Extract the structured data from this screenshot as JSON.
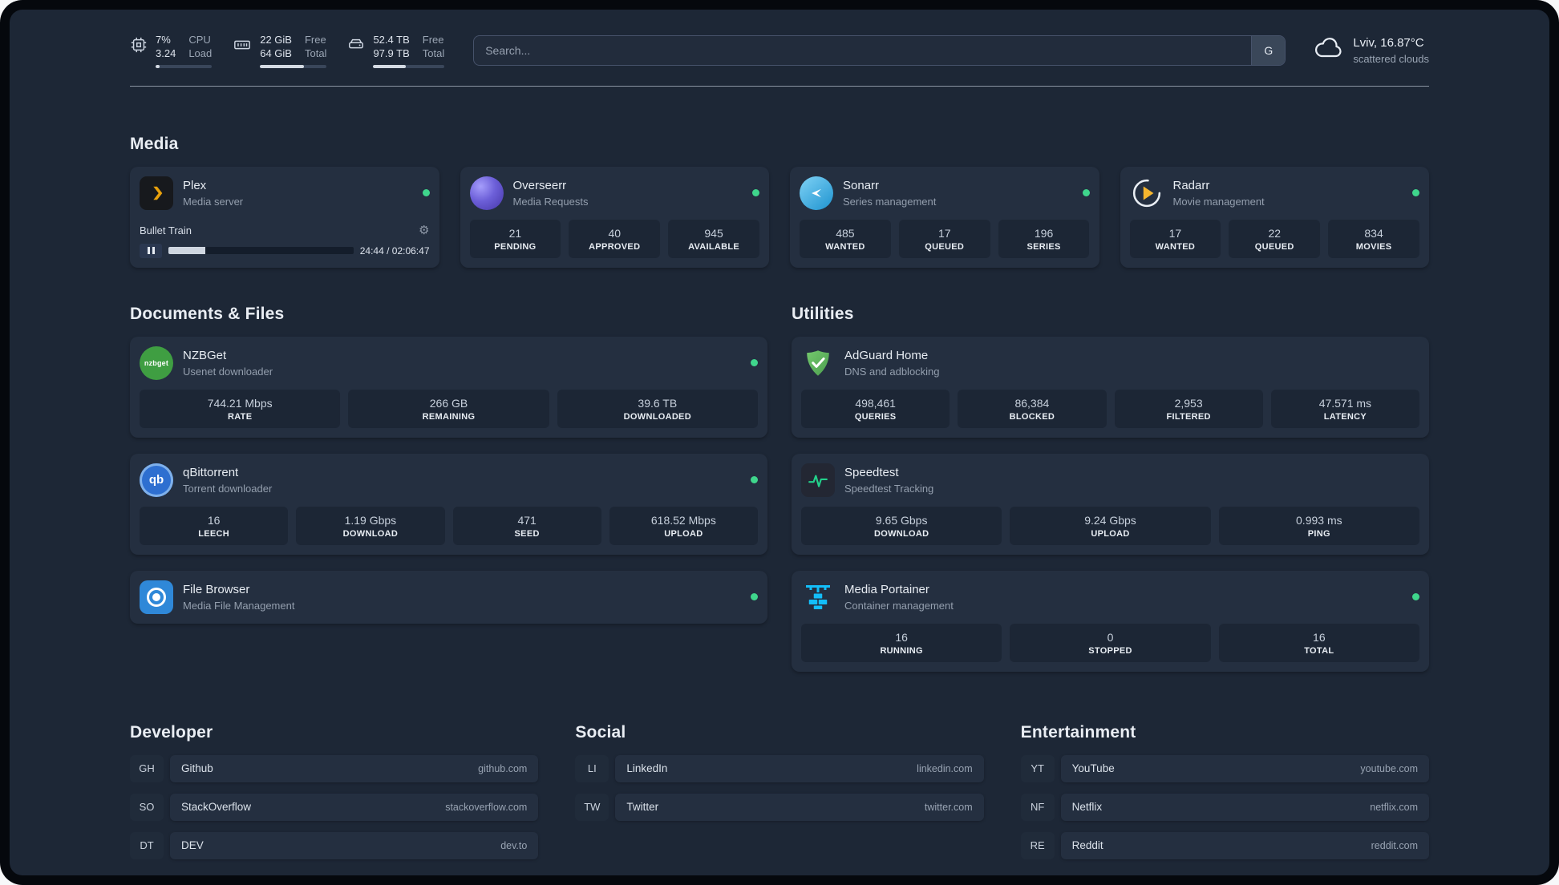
{
  "topbar": {
    "cpu": {
      "col1_top": "7%",
      "col1_bottom": "3.24",
      "col2_top": "CPU",
      "col2_bottom": "Load",
      "bar_percent": 7
    },
    "memory": {
      "col1_top": "22 GiB",
      "col1_bottom": "64 GiB",
      "col2_top": "Free",
      "col2_bottom": "Total",
      "bar_percent": 66
    },
    "disk": {
      "col1_top": "52.4 TB",
      "col1_bottom": "97.9 TB",
      "col2_top": "Free",
      "col2_bottom": "Total",
      "bar_percent": 46
    },
    "search": {
      "placeholder": "Search...",
      "button": "G"
    },
    "weather": {
      "location": "Lviv, 16.87°C",
      "condition": "scattered clouds"
    }
  },
  "media": {
    "title": "Media",
    "plex": {
      "name": "Plex",
      "subtitle": "Media server",
      "now_playing": "Bullet Train",
      "time": "24:44 / 02:06:47",
      "progress_percent": 20
    },
    "overseerr": {
      "name": "Overseerr",
      "subtitle": "Media Requests",
      "stats": [
        {
          "value": "21",
          "label": "PENDING"
        },
        {
          "value": "40",
          "label": "APPROVED"
        },
        {
          "value": "945",
          "label": "AVAILABLE"
        }
      ]
    },
    "sonarr": {
      "name": "Sonarr",
      "subtitle": "Series management",
      "stats": [
        {
          "value": "485",
          "label": "WANTED"
        },
        {
          "value": "17",
          "label": "QUEUED"
        },
        {
          "value": "196",
          "label": "SERIES"
        }
      ]
    },
    "radarr": {
      "name": "Radarr",
      "subtitle": "Movie management",
      "stats": [
        {
          "value": "17",
          "label": "WANTED"
        },
        {
          "value": "22",
          "label": "QUEUED"
        },
        {
          "value": "834",
          "label": "MOVIES"
        }
      ]
    }
  },
  "documents": {
    "title": "Documents & Files",
    "nzbget": {
      "name": "NZBGet",
      "subtitle": "Usenet downloader",
      "stats": [
        {
          "value": "744.21 Mbps",
          "label": "RATE"
        },
        {
          "value": "266 GB",
          "label": "REMAINING"
        },
        {
          "value": "39.6 TB",
          "label": "DOWNLOADED"
        }
      ]
    },
    "qbittorrent": {
      "name": "qBittorrent",
      "subtitle": "Torrent downloader",
      "stats": [
        {
          "value": "16",
          "label": "LEECH"
        },
        {
          "value": "1.19 Gbps",
          "label": "DOWNLOAD"
        },
        {
          "value": "471",
          "label": "SEED"
        },
        {
          "value": "618.52 Mbps",
          "label": "UPLOAD"
        }
      ]
    },
    "filebrowser": {
      "name": "File Browser",
      "subtitle": "Media File Management"
    }
  },
  "utilities": {
    "title": "Utilities",
    "adguard": {
      "name": "AdGuard Home",
      "subtitle": "DNS and adblocking",
      "stats": [
        {
          "value": "498,461",
          "label": "QUERIES"
        },
        {
          "value": "86,384",
          "label": "BLOCKED"
        },
        {
          "value": "2,953",
          "label": "FILTERED"
        },
        {
          "value": "47.571 ms",
          "label": "LATENCY"
        }
      ]
    },
    "speedtest": {
      "name": "Speedtest",
      "subtitle": "Speedtest Tracking",
      "stats": [
        {
          "value": "9.65 Gbps",
          "label": "DOWNLOAD"
        },
        {
          "value": "9.24 Gbps",
          "label": "UPLOAD"
        },
        {
          "value": "0.993 ms",
          "label": "PING"
        }
      ]
    },
    "portainer": {
      "name": "Media Portainer",
      "subtitle": "Container management",
      "stats": [
        {
          "value": "16",
          "label": "RUNNING"
        },
        {
          "value": "0",
          "label": "STOPPED"
        },
        {
          "value": "16",
          "label": "TOTAL"
        }
      ]
    }
  },
  "bookmarks": {
    "developer": {
      "title": "Developer",
      "items": [
        {
          "abbr": "GH",
          "name": "Github",
          "url": "github.com"
        },
        {
          "abbr": "SO",
          "name": "StackOverflow",
          "url": "stackoverflow.com"
        },
        {
          "abbr": "DT",
          "name": "DEV",
          "url": "dev.to"
        }
      ]
    },
    "social": {
      "title": "Social",
      "items": [
        {
          "abbr": "LI",
          "name": "LinkedIn",
          "url": "linkedin.com"
        },
        {
          "abbr": "TW",
          "name": "Twitter",
          "url": "twitter.com"
        }
      ]
    },
    "entertainment": {
      "title": "Entertainment",
      "items": [
        {
          "abbr": "YT",
          "name": "YouTube",
          "url": "youtube.com"
        },
        {
          "abbr": "NF",
          "name": "Netflix",
          "url": "netflix.com"
        },
        {
          "abbr": "RE",
          "name": "Reddit",
          "url": "reddit.com"
        }
      ]
    }
  },
  "icons": {
    "gear": "⚙"
  },
  "icon_texts": {
    "nzbget": "nzbget",
    "qbittorrent": "qb"
  },
  "colors": {
    "status_online": "#3fd68c",
    "plex_amber": "#e8a00c",
    "portainer_blue": "#0db7ed",
    "adguard_green": "#63b95d",
    "speedtest_green": "#23d18b"
  }
}
